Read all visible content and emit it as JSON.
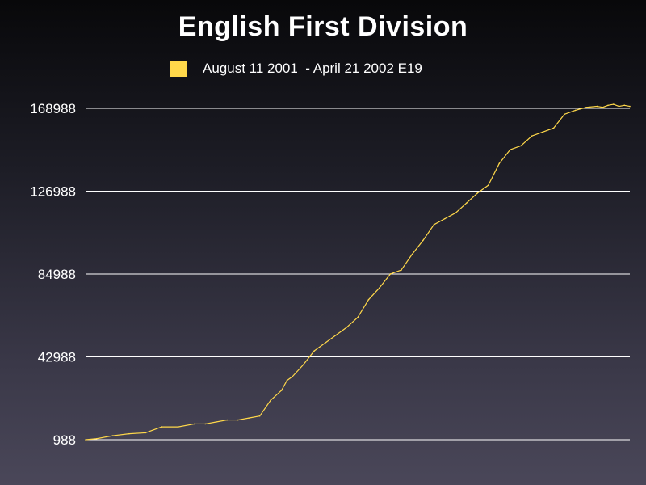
{
  "chart_data": {
    "type": "line",
    "title": "English First Division",
    "xlabel": "",
    "ylabel": "",
    "legend_position": "top",
    "grid": true,
    "yticks": [
      988,
      42988,
      84988,
      126988,
      168988
    ],
    "ylim": [
      988,
      168988
    ],
    "xlim": [
      0,
      100
    ],
    "colors": {
      "series": "#ffd84a",
      "grid": "#ffffff"
    },
    "series": [
      {
        "name": "August 11 2001  - April 21 2002 E19",
        "x": [
          0,
          2,
          5,
          8,
          11,
          14,
          17,
          20,
          22,
          24,
          26,
          28,
          30,
          32,
          34,
          36,
          37,
          38,
          40,
          42,
          44,
          46,
          48,
          50,
          52,
          54,
          56,
          58,
          60,
          62,
          64,
          66,
          68,
          70,
          72,
          74,
          76,
          78,
          80,
          82,
          84,
          86,
          88,
          90,
          92,
          94,
          95,
          96,
          97,
          98,
          99,
          100
        ],
        "values": [
          988,
          1500,
          3000,
          4000,
          4500,
          7500,
          7500,
          9000,
          9000,
          10000,
          11000,
          11000,
          12000,
          13000,
          21000,
          26000,
          31000,
          33000,
          39000,
          46000,
          50000,
          54000,
          58000,
          63000,
          72000,
          78000,
          85000,
          87000,
          95000,
          102000,
          110000,
          113000,
          116000,
          121000,
          126000,
          130000,
          141000,
          148000,
          150000,
          155000,
          157000,
          159000,
          166000,
          168000,
          169500,
          170000,
          169500,
          170500,
          171000,
          170000,
          170500,
          170000
        ]
      }
    ]
  }
}
